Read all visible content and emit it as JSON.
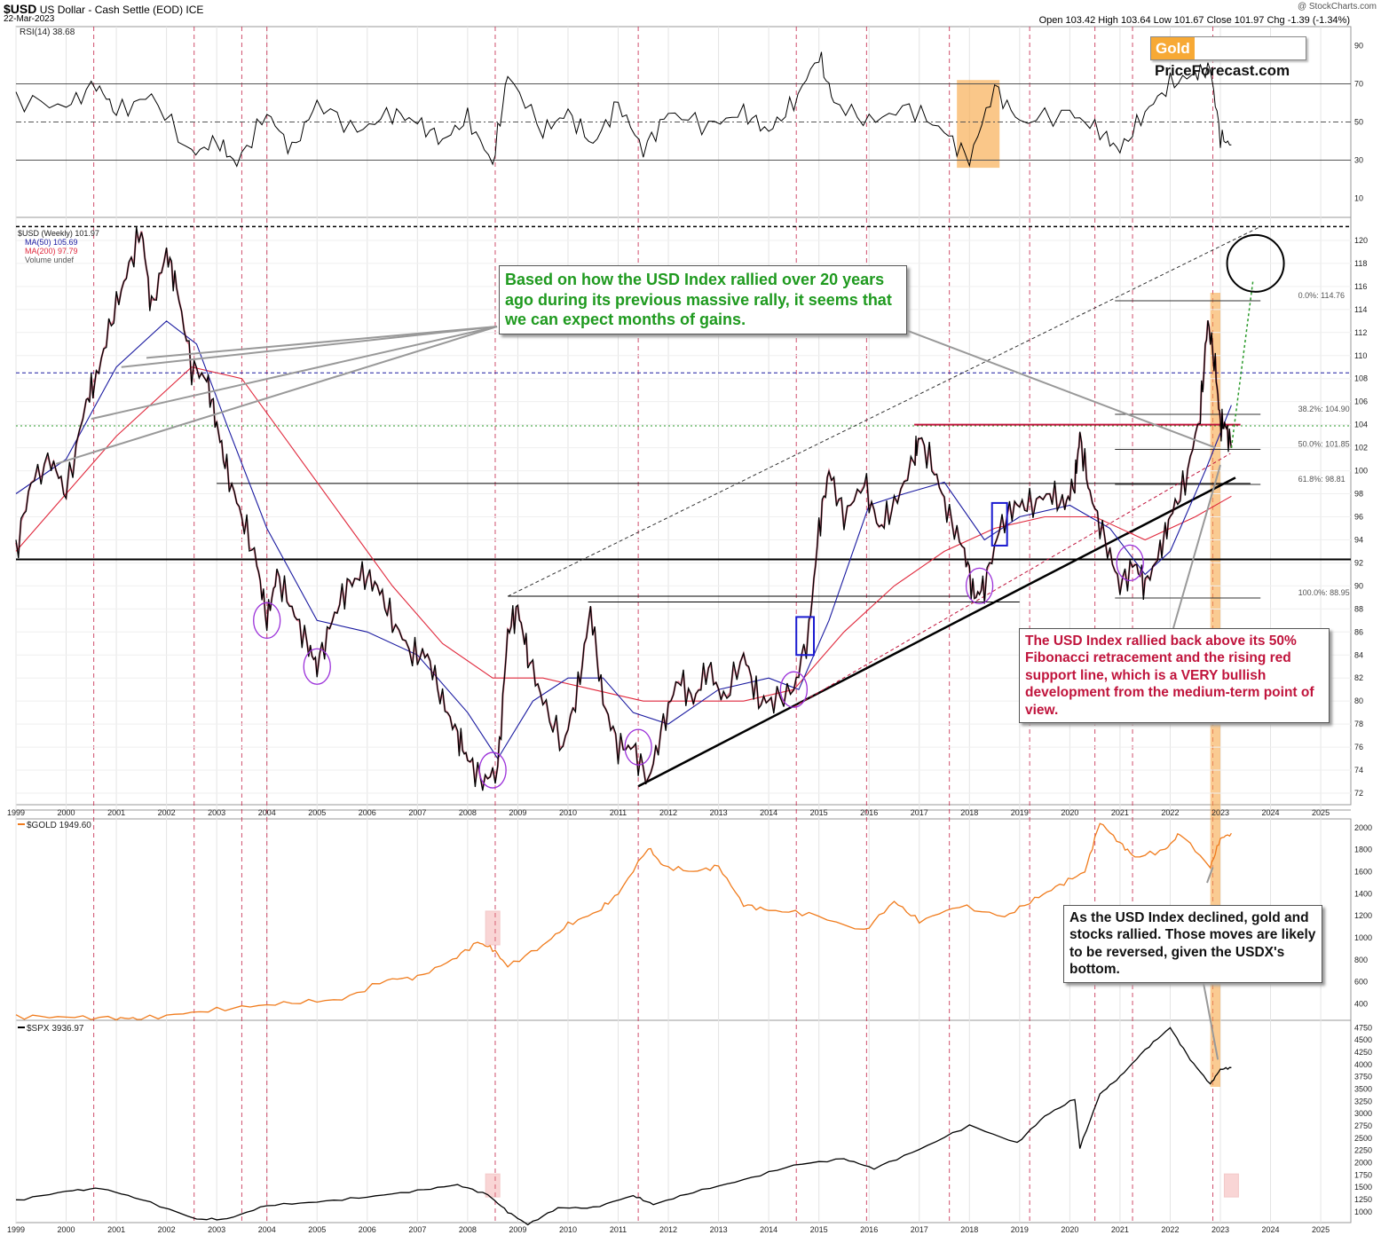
{
  "header": {
    "symbol": "$USD",
    "description": "US Dollar - Cash Settle (EOD) ICE",
    "date": "22-Mar-2023",
    "ohlc_text": "Open 103.42  High 103.64  Low 101.67  Close 101.97  Chg -1.39 (-1.34%)",
    "watermark": "@ StockCharts.com"
  },
  "brand": {
    "gold": "Gold",
    "rest": "PriceForecast.com"
  },
  "colors": {
    "price_up": "#000000",
    "price_down": "#c0143c",
    "ma50": "#1a1aa0",
    "ma200": "#e0283c",
    "gold": "#f07b1c",
    "spx": "#000000",
    "highlight": "#f7a94a",
    "cycle_line": "#c0143c",
    "circle": "#9b30d9",
    "rsi_over": "#2f7a2f",
    "rsi_under": "#e07070",
    "note_green": "#1f9a1f",
    "note_red": "#c0143c"
  },
  "annotations": {
    "green_note": "Based on how the USD Index rallied over 20 years ago during its previous massive rally, it seems that we can expect months of gains.",
    "red_note": "The USD Index rallied back above its 50% Fibonacci retracement and the rising red support line, which is a VERY bullish development from the medium-term point of view.",
    "black_note": "As the USD Index declined, gold and stocks rallied. Those moves are likely to be reversed, given the USDX's bottom."
  },
  "chart_data": [
    {
      "type": "line",
      "panel": "rsi",
      "legend": "RSI(14) 38.68",
      "yticks": [
        10,
        30,
        50,
        70,
        90
      ],
      "ylim": [
        0,
        100
      ],
      "reference_lines": [
        30,
        50,
        70
      ],
      "x": [
        1999.0,
        2000.0,
        2000.6,
        2001.0,
        2001.7,
        2002.5,
        2003.0,
        2003.4,
        2004.0,
        2004.5,
        2005.0,
        2005.8,
        2006.5,
        2007.0,
        2007.5,
        2008.0,
        2008.5,
        2008.8,
        2009.5,
        2010.0,
        2010.5,
        2011.0,
        2011.5,
        2012.0,
        2012.8,
        2013.5,
        2014.0,
        2014.5,
        2015.0,
        2015.3,
        2016.0,
        2016.8,
        2017.5,
        2018.0,
        2018.5,
        2019.0,
        2020.0,
        2020.6,
        2021.0,
        2021.5,
        2022.0,
        2022.5,
        2022.8,
        2023.0,
        2023.22
      ],
      "values": [
        62,
        58,
        70,
        55,
        64,
        33,
        40,
        28,
        55,
        35,
        60,
        45,
        55,
        50,
        40,
        52,
        28,
        75,
        45,
        55,
        38,
        60,
        35,
        55,
        48,
        55,
        45,
        60,
        85,
        60,
        50,
        58,
        45,
        30,
        68,
        50,
        55,
        45,
        35,
        55,
        70,
        75,
        78,
        42,
        38
      ],
      "current_value": 38.68
    },
    {
      "type": "line",
      "panel": "usd_index",
      "legend": [
        "$USD (Weekly) 101.97",
        "MA(50) 105.69",
        "MA(200) 97.79",
        "Volume undef"
      ],
      "xticks": [
        "1999",
        "2000",
        "2001",
        "2002",
        "2003",
        "2004",
        "2005",
        "2006",
        "2007",
        "2008",
        "2009",
        "2010",
        "2011",
        "2012",
        "2013",
        "2014",
        "2015",
        "2016",
        "2017",
        "2018",
        "2019",
        "2020",
        "2021",
        "2022",
        "2023",
        "2024",
        "2025"
      ],
      "yticks": [
        72,
        74,
        76,
        78,
        80,
        82,
        84,
        86,
        88,
        90,
        92,
        94,
        96,
        98,
        100,
        102,
        104,
        106,
        108,
        110,
        112,
        114,
        116,
        118,
        120
      ],
      "ylim": [
        71,
        122
      ],
      "price": {
        "x": [
          1999.0,
          1999.3,
          1999.7,
          2000.0,
          2000.4,
          2000.6,
          2000.9,
          2001.2,
          2001.5,
          2001.7,
          2002.0,
          2002.2,
          2002.5,
          2002.8,
          2003.0,
          2003.2,
          2003.5,
          2003.8,
          2004.0,
          2004.2,
          2004.5,
          2004.8,
          2005.0,
          2005.3,
          2005.6,
          2005.9,
          2006.2,
          2006.5,
          2006.9,
          2007.2,
          2007.5,
          2007.8,
          2008.0,
          2008.3,
          2008.6,
          2008.8,
          2009.0,
          2009.2,
          2009.5,
          2009.9,
          2010.2,
          2010.45,
          2010.7,
          2011.0,
          2011.3,
          2011.6,
          2011.9,
          2012.2,
          2012.5,
          2012.8,
          2013.1,
          2013.5,
          2013.8,
          2014.1,
          2014.5,
          2014.8,
          2015.0,
          2015.2,
          2015.5,
          2015.9,
          2016.2,
          2016.5,
          2016.9,
          2017.0,
          2017.3,
          2017.6,
          2017.9,
          2018.1,
          2018.3,
          2018.6,
          2018.9,
          2019.2,
          2019.6,
          2019.9,
          2020.1,
          2020.2,
          2020.4,
          2020.7,
          2021.0,
          2021.3,
          2021.5,
          2021.8,
          2022.0,
          2022.3,
          2022.6,
          2022.75,
          2022.9,
          2023.0,
          2023.1,
          2023.22
        ],
        "values": [
          93,
          99,
          101,
          98,
          106,
          108,
          113,
          117,
          121,
          114,
          119,
          116,
          109,
          108,
          104,
          100,
          96,
          92,
          87,
          91,
          88,
          85,
          83,
          87,
          90,
          91,
          90,
          87,
          84,
          84,
          80,
          77,
          75,
          73,
          74,
          86,
          88,
          84,
          80,
          76,
          81,
          88,
          80,
          76,
          76,
          73,
          78,
          82,
          80,
          83,
          80,
          84,
          80,
          80,
          81,
          86,
          95,
          100,
          96,
          99,
          95,
          97,
          101,
          103,
          100,
          96,
          93,
          89,
          90,
          95,
          97,
          97,
          98,
          97,
          99,
          103,
          98,
          94,
          90,
          92,
          90,
          93,
          96,
          99,
          105,
          113,
          109,
          104,
          104,
          101.97
        ]
      },
      "ma50": {
        "x": [
          1999.0,
          2000.0,
          2001.0,
          2002.0,
          2002.6,
          2003.2,
          2004.0,
          2005.0,
          2006.0,
          2007.0,
          2008.0,
          2008.6,
          2009.3,
          2010.0,
          2010.7,
          2011.3,
          2012.0,
          2013.0,
          2014.0,
          2014.6,
          2015.2,
          2016.0,
          2016.7,
          2017.5,
          2018.3,
          2019.0,
          2020.0,
          2020.8,
          2021.5,
          2022.0,
          2022.7,
          2023.22
        ],
        "values": [
          98,
          101,
          109,
          113,
          111,
          104,
          95,
          87,
          86,
          84,
          79,
          75,
          80,
          82,
          82,
          79,
          78,
          81,
          82,
          81,
          87,
          97,
          98,
          99,
          94,
          96,
          97,
          95,
          91,
          93,
          100,
          105.69
        ]
      },
      "ma200": {
        "x": [
          1999.0,
          2001.0,
          2002.5,
          2003.5,
          2004.5,
          2005.5,
          2006.5,
          2007.5,
          2008.5,
          2009.5,
          2010.5,
          2011.5,
          2012.5,
          2013.5,
          2014.5,
          2015.5,
          2016.5,
          2017.5,
          2018.5,
          2019.5,
          2020.5,
          2021.5,
          2022.5,
          2023.22
        ],
        "values": [
          93,
          103,
          109,
          108,
          102,
          96,
          90,
          85,
          82,
          82,
          81,
          80,
          80,
          80,
          81,
          86,
          90,
          93,
          95,
          96,
          96,
          94,
          96,
          97.79
        ]
      },
      "fibonacci": [
        {
          "label": "0.0%: 114.76",
          "value": 114.76
        },
        {
          "label": "38.2%: 104.90",
          "value": 104.9
        },
        {
          "label": "50.0%: 101.85",
          "value": 101.85
        },
        {
          "label": "61.8%: 98.81",
          "value": 98.81
        },
        {
          "label": "100.0%: 88.95",
          "value": 88.95
        }
      ],
      "horizontal_levels": [
        92.3,
        121.2
      ],
      "support_line": {
        "x": [
          2011.4,
          2023.3
        ],
        "values": [
          72.6,
          99.4
        ]
      },
      "red_support_line": {
        "x": [
          2014.5,
          2023.2
        ],
        "values": [
          79.5,
          101.5
        ]
      },
      "upper_channel": {
        "x": [
          2008.8,
          2023.8
        ],
        "values": [
          89.1,
          121.2
        ]
      },
      "projection": {
        "x": [
          2023.22,
          2023.65
        ],
        "values": [
          101.97,
          116.5
        ]
      },
      "target_circle": {
        "x": 2023.7,
        "value": 118
      },
      "circled_lows": [
        2004.0,
        2005.0,
        2008.5,
        2011.4,
        2014.5,
        2018.2,
        2021.2
      ],
      "highlight_2022": [
        2022.8,
        2023.0
      ]
    },
    {
      "type": "line",
      "panel": "gold",
      "legend": "$GOLD 1949.60",
      "yticks": [
        400,
        600,
        800,
        1000,
        1200,
        1400,
        1600,
        1800,
        2000
      ],
      "ylim": [
        250,
        2080
      ],
      "x": [
        1999.0,
        2000.0,
        2001.0,
        2001.5,
        2002.5,
        2003.5,
        2004.5,
        2005.5,
        2006.4,
        2007.0,
        2007.7,
        2008.2,
        2008.5,
        2008.8,
        2009.5,
        2010.0,
        2010.6,
        2011.0,
        2011.6,
        2011.9,
        2012.5,
        2013.0,
        2013.5,
        2014.0,
        2014.8,
        2015.9,
        2016.5,
        2017.0,
        2017.8,
        2018.7,
        2019.3,
        2019.8,
        2020.3,
        2020.6,
        2021.0,
        2021.3,
        2021.9,
        2022.2,
        2022.8,
        2023.0,
        2023.22
      ],
      "values": [
        285,
        280,
        270,
        265,
        320,
        370,
        410,
        440,
        620,
        640,
        800,
        960,
        900,
        740,
        930,
        1120,
        1240,
        1400,
        1820,
        1650,
        1600,
        1650,
        1300,
        1250,
        1220,
        1060,
        1330,
        1150,
        1290,
        1190,
        1350,
        1480,
        1600,
        2050,
        1860,
        1730,
        1800,
        1950,
        1640,
        1900,
        1949.6
      ],
      "highlights": [
        2008.5,
        2023.22
      ]
    },
    {
      "type": "line",
      "panel": "spx",
      "legend": "$SPX 3936.97",
      "yticks": [
        1000,
        1250,
        1500,
        1750,
        2000,
        2250,
        2500,
        2750,
        3000,
        3250,
        3500,
        3750,
        4000,
        4250,
        4500,
        4750
      ],
      "ylim": [
        780,
        4900
      ],
      "x": [
        1999.0,
        2000.0,
        2000.7,
        2001.5,
        2002.6,
        2003.2,
        2004.0,
        2005.0,
        2006.0,
        2007.0,
        2007.8,
        2008.4,
        2008.8,
        2009.2,
        2009.8,
        2010.5,
        2011.3,
        2011.7,
        2012.5,
        2013.5,
        2014.5,
        2015.5,
        2016.1,
        2017.0,
        2018.0,
        2018.95,
        2019.5,
        2020.1,
        2020.2,
        2020.6,
        2021.0,
        2021.5,
        2022.0,
        2022.4,
        2022.8,
        2023.0,
        2023.22
      ],
      "values": [
        1230,
        1420,
        1480,
        1250,
        850,
        850,
        1130,
        1200,
        1300,
        1430,
        1550,
        1350,
        1000,
        740,
        1080,
        1080,
        1330,
        1150,
        1400,
        1650,
        1950,
        2080,
        1880,
        2270,
        2760,
        2400,
        2950,
        3300,
        2300,
        3400,
        3750,
        4300,
        4750,
        4100,
        3600,
        3900,
        3936.97
      ],
      "highlights": [
        2008.5,
        2023.22
      ]
    }
  ]
}
